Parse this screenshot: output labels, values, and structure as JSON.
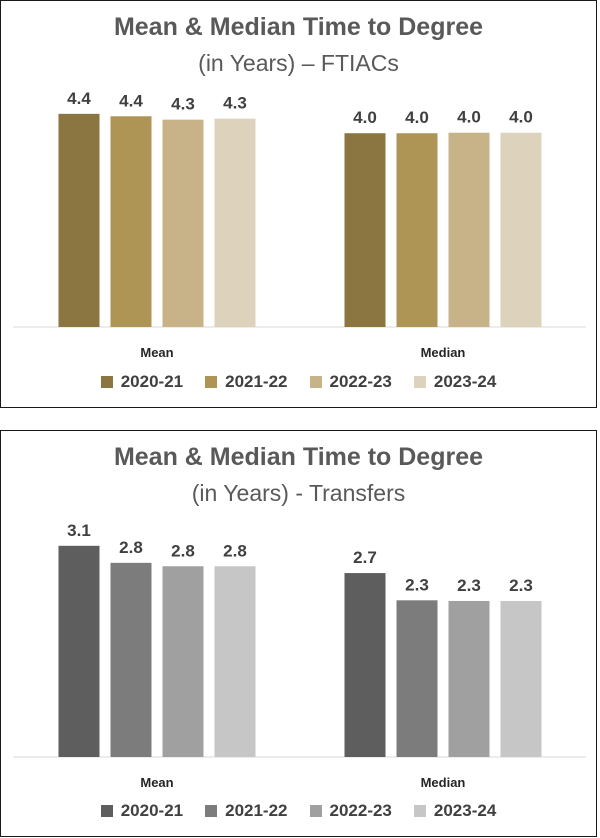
{
  "chart_data": [
    {
      "type": "bar",
      "title": "Mean & Median Time to Degree",
      "subtitle": "(in Years) – FTIACs",
      "categories": [
        "Mean",
        "Median"
      ],
      "series": [
        {
          "name": "2020-21",
          "values": [
            4.4,
            4.0
          ],
          "labels": [
            "4.4",
            "4.0"
          ],
          "color": "#8b7540"
        },
        {
          "name": "2021-22",
          "values": [
            4.35,
            4.0
          ],
          "labels": [
            "4.4",
            "4.0"
          ],
          "color": "#ae9556"
        },
        {
          "name": "2022-23",
          "values": [
            4.28,
            4.01
          ],
          "labels": [
            "4.3",
            "4.0"
          ],
          "color": "#c8b389"
        },
        {
          "name": "2023-24",
          "values": [
            4.3,
            4.01
          ],
          "labels": [
            "4.3",
            "4.0"
          ],
          "color": "#ddd2bc"
        }
      ],
      "ylim": [
        0,
        4.5
      ],
      "legend_position": "bottom",
      "grid": false
    },
    {
      "type": "bar",
      "title": "Mean & Median Time to Degree",
      "subtitle": "(in Years) - Transfers",
      "categories": [
        "Mean",
        "Median"
      ],
      "series": [
        {
          "name": "2020-21",
          "values": [
            3.1,
            2.7
          ],
          "labels": [
            "3.1",
            "2.7"
          ],
          "color": "#5e5e5e"
        },
        {
          "name": "2021-22",
          "values": [
            2.85,
            2.3
          ],
          "labels": [
            "2.8",
            "2.3"
          ],
          "color": "#7c7c7c"
        },
        {
          "name": "2022-23",
          "values": [
            2.8,
            2.29
          ],
          "labels": [
            "2.8",
            "2.3"
          ],
          "color": "#a0a0a0"
        },
        {
          "name": "2023-24",
          "values": [
            2.8,
            2.29
          ],
          "labels": [
            "2.8",
            "2.3"
          ],
          "color": "#c6c6c6"
        }
      ],
      "ylim": [
        0,
        3.2
      ],
      "legend_position": "bottom",
      "grid": false
    }
  ]
}
